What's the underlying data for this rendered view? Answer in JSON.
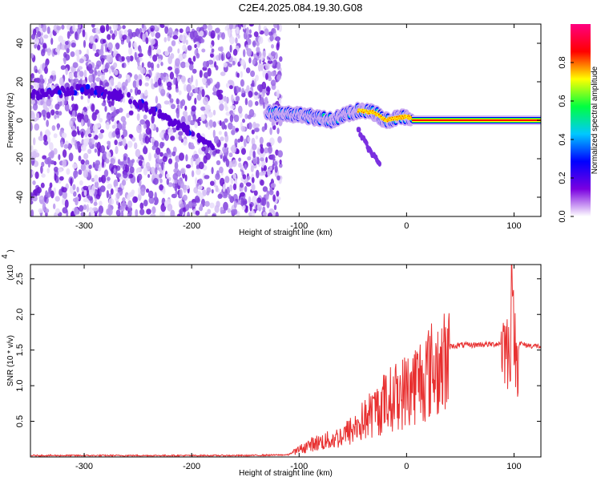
{
  "title": "C2E4.2025.084.19.30.G08",
  "chart_data": [
    {
      "type": "heatmap",
      "xlabel": "Height of straight line (km)",
      "ylabel": "Frequency (Hz)",
      "xlim": [
        -350,
        125
      ],
      "ylim": [
        -50,
        50
      ],
      "xticks": [
        -300,
        -200,
        -100,
        0,
        100
      ],
      "yticks": [
        -40,
        -20,
        0,
        20,
        40
      ],
      "colorbar": {
        "label": "Normalized spectral amplitude",
        "range": [
          0,
          1
        ],
        "ticks": [
          "0.0",
          "0.2",
          "0.4",
          "0.6",
          "0.8"
        ],
        "colors": [
          "#ffffff",
          "#7a00e0",
          "#0000ff",
          "#00c8ff",
          "#00ff40",
          "#ffff00",
          "#ff0000",
          "#ff0080"
        ]
      },
      "features": {
        "noise_region_x": [
          -350,
          -125
        ],
        "faint_trace": [
          [
            -350,
            13
          ],
          [
            -300,
            16
          ],
          [
            -260,
            12
          ],
          [
            -220,
            0
          ],
          [
            -180,
            -13
          ]
        ],
        "signal_trace": [
          [
            -130,
            4
          ],
          [
            -100,
            3
          ],
          [
            -70,
            0
          ],
          [
            -45,
            5
          ],
          [
            -30,
            4
          ],
          [
            -20,
            0
          ],
          [
            0,
            2
          ],
          [
            10,
            0
          ],
          [
            125,
            0
          ]
        ],
        "branch_trace": [
          [
            -45,
            -5
          ],
          [
            -35,
            -15
          ],
          [
            -25,
            -23
          ]
        ]
      }
    },
    {
      "type": "line",
      "xlabel": "Height of straight line (km)",
      "ylabel": "SNR (10 * v/v)",
      "yscale_label": "(x10",
      "yscale_exp": "4",
      "xlim": [
        -350,
        125
      ],
      "ylim": [
        0,
        2.7
      ],
      "xticks": [
        -300,
        -200,
        -100,
        0,
        100
      ],
      "yticks": [
        "0.5",
        "1.0",
        "1.5",
        "2.0",
        "2.5"
      ],
      "series": [
        {
          "color": "#e83030",
          "x": [
            -350,
            -300,
            -250,
            -200,
            -150,
            -110,
            -100,
            -90,
            -80,
            -70,
            -60,
            -50,
            -40,
            -30,
            -20,
            -10,
            0,
            10,
            20,
            30,
            40,
            50,
            60,
            70,
            80,
            90,
            95,
            98,
            100,
            102,
            105,
            110,
            125
          ],
          "y": [
            0.02,
            0.02,
            0.02,
            0.02,
            0.02,
            0.03,
            0.12,
            0.2,
            0.25,
            0.28,
            0.35,
            0.45,
            0.6,
            0.75,
            0.9,
            1.0,
            1.1,
            1.25,
            1.4,
            1.5,
            1.55,
            1.57,
            1.57,
            1.58,
            1.58,
            1.6,
            1.5,
            1.7,
            1.85,
            1.3,
            1.6,
            1.57,
            1.55
          ]
        }
      ]
    }
  ]
}
